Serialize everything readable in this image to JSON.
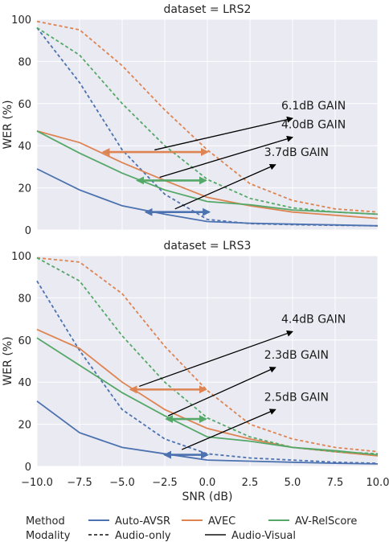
{
  "colors": {
    "auto_avsr": "#4c72b0",
    "avec": "#dd8452",
    "av_relscore": "#55a868",
    "panel_bg": "#eaeaf2",
    "grid": "#ffffff"
  },
  "chart_data": [
    {
      "type": "line",
      "title": "dataset = LRS2",
      "xlabel": "",
      "ylabel": "WER (%)",
      "xlim": [
        -10,
        10
      ],
      "ylim": [
        0,
        100
      ],
      "x": [
        -10,
        -7.5,
        -5,
        -2.5,
        0,
        2.5,
        5,
        7.5,
        10
      ],
      "grid": true,
      "series": [
        {
          "name": "Auto-AVSR",
          "modality": "Audio-only",
          "values": [
            96,
            70,
            38,
            17,
            5,
            3,
            2.5,
            2.2,
            2
          ]
        },
        {
          "name": "Auto-AVSR",
          "modality": "Audio-Visual",
          "values": [
            29,
            19,
            11.5,
            7.5,
            4,
            3.2,
            2.8,
            2.4,
            2
          ]
        },
        {
          "name": "AVEC",
          "modality": "Audio-only",
          "values": [
            99,
            95,
            78,
            57,
            38,
            22,
            14,
            10,
            8.5
          ]
        },
        {
          "name": "AVEC",
          "modality": "Audio-Visual",
          "values": [
            47,
            41.5,
            32,
            23.5,
            15.5,
            11.5,
            8.5,
            7,
            5.5
          ]
        },
        {
          "name": "AV-RelScore",
          "modality": "Audio-only",
          "values": [
            96,
            83,
            60,
            40,
            24,
            15,
            10.5,
            8.5,
            7.5
          ]
        },
        {
          "name": "AV-RelScore",
          "modality": "Audio-Visual",
          "values": [
            47,
            36.5,
            27,
            19,
            13.5,
            12,
            9.5,
            8.5,
            7.5
          ]
        }
      ],
      "annotations": [
        {
          "text": "6.1dB GAIN",
          "arrow_from": [
            -3.1,
            38
          ],
          "arrow_to": [
            5,
            53
          ],
          "bar_x": [
            -6.1,
            0
          ],
          "bar_y": 37,
          "color": "#dd8452"
        },
        {
          "text": "4.0dB GAIN",
          "arrow_from": [
            -2.8,
            25
          ],
          "arrow_to": [
            5,
            44
          ],
          "bar_x": [
            -4.1,
            -0.1
          ],
          "bar_y": 23.5,
          "color": "#55a868"
        },
        {
          "text": "3.7dB GAIN",
          "arrow_from": [
            -1.9,
            10
          ],
          "arrow_to": [
            4,
            31
          ],
          "bar_x": [
            -3.6,
            0.1
          ],
          "bar_y": 8.5,
          "color": "#4c72b0"
        }
      ]
    },
    {
      "type": "line",
      "title": "dataset = LRS3",
      "xlabel": "SNR (dB)",
      "ylabel": "WER (%)",
      "xlim": [
        -10,
        10
      ],
      "ylim": [
        0,
        100
      ],
      "x": [
        -10,
        -7.5,
        -5,
        -2.5,
        0,
        2.5,
        5,
        7.5,
        10
      ],
      "grid": true,
      "series": [
        {
          "name": "Auto-AVSR",
          "modality": "Audio-only",
          "values": [
            88,
            55,
            27,
            13,
            6,
            4,
            3,
            2,
            1.5
          ]
        },
        {
          "name": "Auto-AVSR",
          "modality": "Audio-Visual",
          "values": [
            31,
            16,
            9,
            6,
            3,
            2.5,
            2,
            1.5,
            1.2
          ]
        },
        {
          "name": "AVEC",
          "modality": "Audio-only",
          "values": [
            99,
            97,
            82,
            57,
            36,
            20,
            13,
            9,
            7
          ]
        },
        {
          "name": "AVEC",
          "modality": "Audio-Visual",
          "values": [
            65,
            56,
            40,
            27,
            18,
            13,
            9,
            7,
            5
          ]
        },
        {
          "name": "AV-RelScore",
          "modality": "Audio-only",
          "values": [
            99,
            88,
            62,
            40,
            23,
            14,
            9,
            7,
            6
          ]
        },
        {
          "name": "AV-RelScore",
          "modality": "Audio-Visual",
          "values": [
            61,
            48,
            35,
            24,
            14,
            12,
            9,
            7.5,
            5.5
          ]
        }
      ],
      "annotations": [
        {
          "text": "4.4dB GAIN",
          "arrow_from": [
            -4,
            38
          ],
          "arrow_to": [
            5,
            64
          ],
          "bar_x": [
            -4.5,
            -0.1
          ],
          "bar_y": 36.5,
          "color": "#dd8452"
        },
        {
          "text": "2.3dB GAIN",
          "arrow_from": [
            -2.3,
            24
          ],
          "arrow_to": [
            4,
            47
          ],
          "bar_x": [
            -2.4,
            -0.1
          ],
          "bar_y": 22.5,
          "color": "#55a868"
        },
        {
          "text": "2.5dB GAIN",
          "arrow_from": [
            -1.5,
            8
          ],
          "arrow_to": [
            4,
            27
          ],
          "bar_x": [
            -2.5,
            0
          ],
          "bar_y": 5.5,
          "color": "#4c72b0"
        }
      ]
    }
  ],
  "x_ticks": [
    "−10.0",
    "−7.5",
    "−5.0",
    "−2.5",
    "0.0",
    "2.5",
    "5.0",
    "7.5",
    "10.0"
  ],
  "y_ticks": [
    "0",
    "20",
    "40",
    "60",
    "80",
    "100"
  ],
  "legend": {
    "method_label": "Method",
    "modality_label": "Modality",
    "methods": [
      "Auto-AVSR",
      "AVEC",
      "AV-RelScore"
    ],
    "modalities": [
      "Audio-only",
      "Audio-Visual"
    ]
  }
}
